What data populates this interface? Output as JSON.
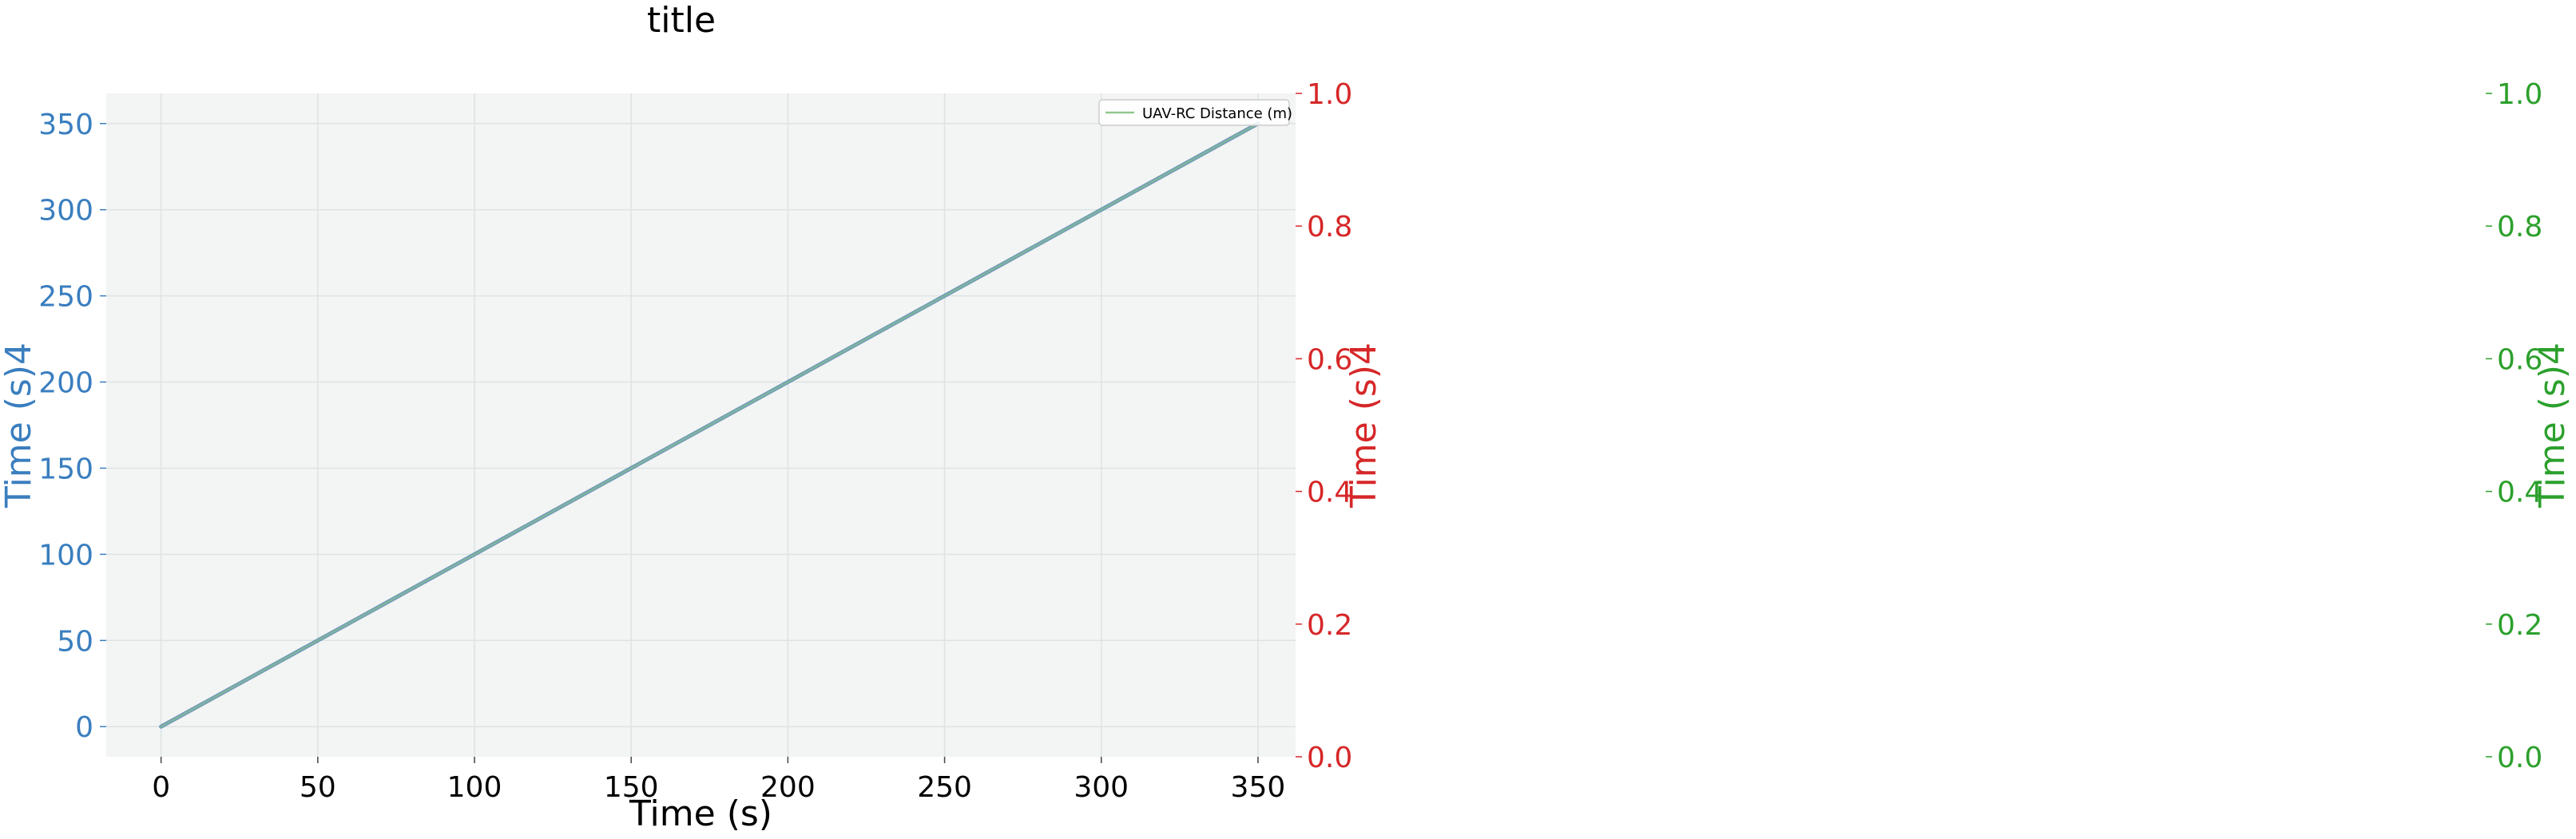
{
  "chart_data": {
    "type": "line",
    "title": "title",
    "xlabel": "Time (s)",
    "xlim": [
      -17.5,
      362
    ],
    "x_ticks": [
      0,
      50,
      100,
      150,
      200,
      250,
      300,
      350
    ],
    "grid": true,
    "legend": {
      "placement": "top-right",
      "entries": [
        "UAV-RC Distance (m)"
      ]
    },
    "axes": [
      {
        "id": "left",
        "label": "Time (s)4",
        "color": "#3a7ebf",
        "ylim": [
          -17.5,
          367.5
        ],
        "ticks": [
          0,
          50,
          100,
          150,
          200,
          250,
          300,
          350
        ]
      },
      {
        "id": "right1",
        "label": "Time (s)4",
        "color": "#d62728",
        "ylim": [
          0.0,
          1.0
        ],
        "ticks": [
          "0.0",
          "0.2",
          "0.4",
          "0.6",
          "0.8",
          "1.0"
        ]
      },
      {
        "id": "right2",
        "label": "Time (s)4",
        "color": "#2ca02c",
        "ylim": [
          0.0,
          1.0
        ],
        "ticks": [
          "0.0",
          "0.2",
          "0.4",
          "0.6",
          "0.8",
          "1.0"
        ]
      }
    ],
    "series": [
      {
        "name": "Time (s)",
        "axis": "left",
        "color": "#4e7fb0",
        "x": [
          0,
          50,
          100,
          150,
          200,
          250,
          300,
          350
        ],
        "y": [
          0,
          50,
          100,
          150,
          200,
          250,
          300,
          350
        ]
      },
      {
        "name": "UAV-RC Distance (m)",
        "axis": "left",
        "color": "#90c890",
        "x": [
          0,
          50,
          100,
          150,
          200,
          250,
          300,
          350
        ],
        "y": [
          0,
          50,
          100,
          150,
          200,
          250,
          300,
          350
        ]
      }
    ]
  },
  "colors": {
    "plot_background": "#f3f4f4",
    "grid": "#dde3e3"
  }
}
